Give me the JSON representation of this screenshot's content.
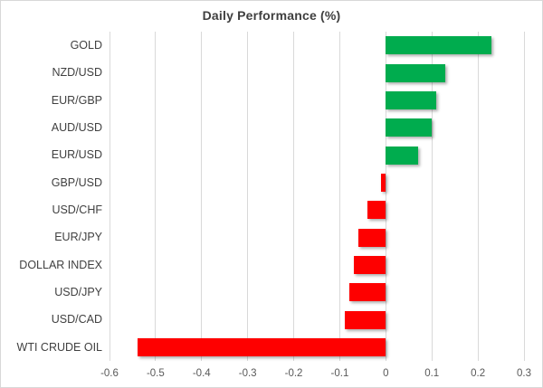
{
  "chart_data": {
    "type": "bar",
    "orientation": "horizontal",
    "title": "Daily Performance (%)",
    "categories": [
      "GOLD",
      "NZD/USD",
      "EUR/GBP",
      "AUD/USD",
      "EUR/USD",
      "GBP/USD",
      "USD/CHF",
      "EUR/JPY",
      "DOLLAR INDEX",
      "USD/JPY",
      "USD/CAD",
      "WTI CRUDE OIL"
    ],
    "values": [
      0.23,
      0.13,
      0.11,
      0.1,
      0.07,
      -0.01,
      -0.04,
      -0.06,
      -0.07,
      -0.08,
      -0.09,
      -0.54
    ],
    "xlim": [
      -0.6,
      0.3
    ],
    "xticks": [
      -0.6,
      -0.5,
      -0.4,
      -0.3,
      -0.2,
      -0.1,
      0,
      0.1,
      0.2,
      0.3
    ],
    "xtick_labels": [
      "-0.6",
      "-0.5",
      "-0.4",
      "-0.3",
      "-0.2",
      "-0.1",
      "0",
      "0.1",
      "0.2",
      "0.3"
    ],
    "grid": "vertical-gridlines-on",
    "legend": "none",
    "colors": {
      "positive_bar": "#00AC4E",
      "negative_bar": "#FE0000",
      "gridline": "#D9D9D9",
      "title_text": "#3F3F3F",
      "category_text": "#404040",
      "tick_text": "#595959",
      "frame_border": "#D8D8D8",
      "background": "#FFFFFF"
    }
  }
}
